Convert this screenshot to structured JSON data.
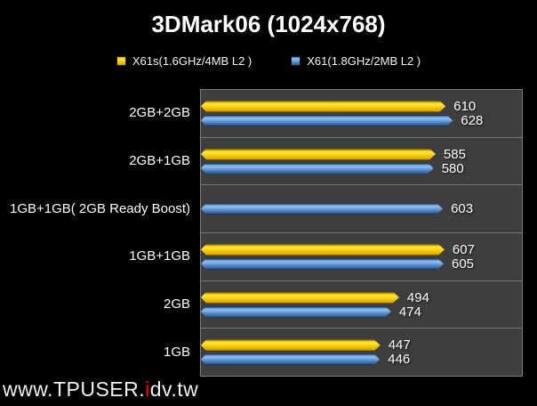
{
  "title": "3DMark06 (1024x768)",
  "watermark": {
    "prefix": "www.TPUSER.",
    "accent": "i",
    "suffix": "dv.tw",
    "accent_color": "#ff0000"
  },
  "colors": {
    "background": "#000000",
    "plot_background": "#3E3E3E",
    "plot_border": "#7E7E7E",
    "row_separator": "#757575",
    "series_yellow": "#FFD400",
    "series_blue": "#4F87C7",
    "text": "#FFFFFF",
    "watermark_accent": "#FF0000"
  },
  "chart_data": {
    "type": "bar",
    "orientation": "horizontal",
    "title": "3DMark06 (1024x768)",
    "xlabel": "",
    "ylabel": "",
    "xlim": [
      0,
      800
    ],
    "grid": "row-separators-only",
    "legend_position": "top-center",
    "categories": [
      "2GB+2GB",
      "2GB+1GB",
      "1GB+1GB( 2GB Ready Boost)",
      "1GB+1GB",
      "2GB",
      "1GB"
    ],
    "series": [
      {
        "name": "X61s(1.6GHz/4MB L2 )",
        "color": "#FFD400",
        "values": [
          610,
          585,
          null,
          607,
          494,
          447
        ]
      },
      {
        "name": "X61(1.8GHz/2MB L2 )",
        "color": "#4F87C7",
        "values": [
          628,
          580,
          603,
          605,
          474,
          446
        ]
      }
    ],
    "data_labels_shown": true
  }
}
